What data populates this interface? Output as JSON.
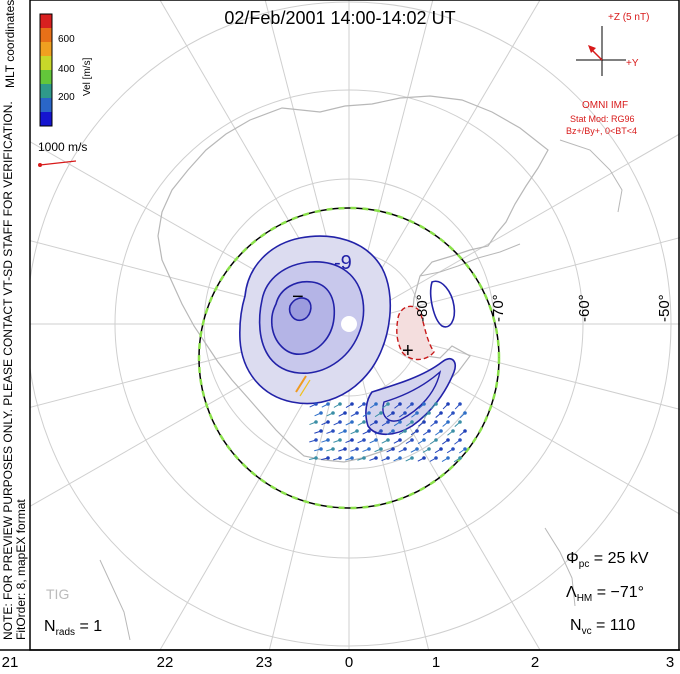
{
  "header": {
    "title": "02/Feb/2001 14:00-14:02 UT"
  },
  "colorbar": {
    "unit_label": "Vel [m/s]",
    "ticks": [
      "600",
      "400",
      "200"
    ],
    "colors": [
      "#1515d0",
      "#2a66c8",
      "#2f9a8a",
      "#63c63a",
      "#c8d82a",
      "#f0a020",
      "#e87018",
      "#d82020"
    ]
  },
  "coord_label": "MLT coordinates",
  "vector_scale": {
    "label": "1000 m/s"
  },
  "imf": {
    "z_label": "+Z (5 nT)",
    "y_label": "+Y",
    "source": "OMNI IMF",
    "model_line1": "Stat Mod: RG96",
    "model_line2": "Bz+/By+, 0<BT<4"
  },
  "notes": {
    "preview": "NOTE: FOR PREVIEW PURPOSES ONLY. PLEASE CONTACT VT-SD STAFF FOR VERIFICATION.",
    "fit": "FitOrder: 8, mapEX format"
  },
  "stats": {
    "phi_label": "Φ",
    "phi_sub": "pc",
    "phi_value": "= 25 kV",
    "lambda_label": "Λ",
    "lambda_sub": "HM",
    "lambda_value": "= −71°",
    "nvc_label": "N",
    "nvc_sub": "vc",
    "nvc_value": "= 110",
    "nrads_label": "N",
    "nrads_sub": "rads",
    "nrads_value": "= 1"
  },
  "station": "TIG",
  "contour_labels": {
    "minus_9": "-9",
    "minus": "−",
    "plus": "+"
  },
  "lat_labels": [
    "-80°",
    "-70°",
    "-60°",
    "-50°"
  ],
  "mlt_ticks": [
    "21",
    "22",
    "23",
    "0",
    "1",
    "2",
    "3"
  ],
  "colors": {
    "negative_potential": "#2222a8",
    "positive_potential": "#c81a1a",
    "hmb": "#8ae04a",
    "accent_red": "#d81a1a"
  }
}
